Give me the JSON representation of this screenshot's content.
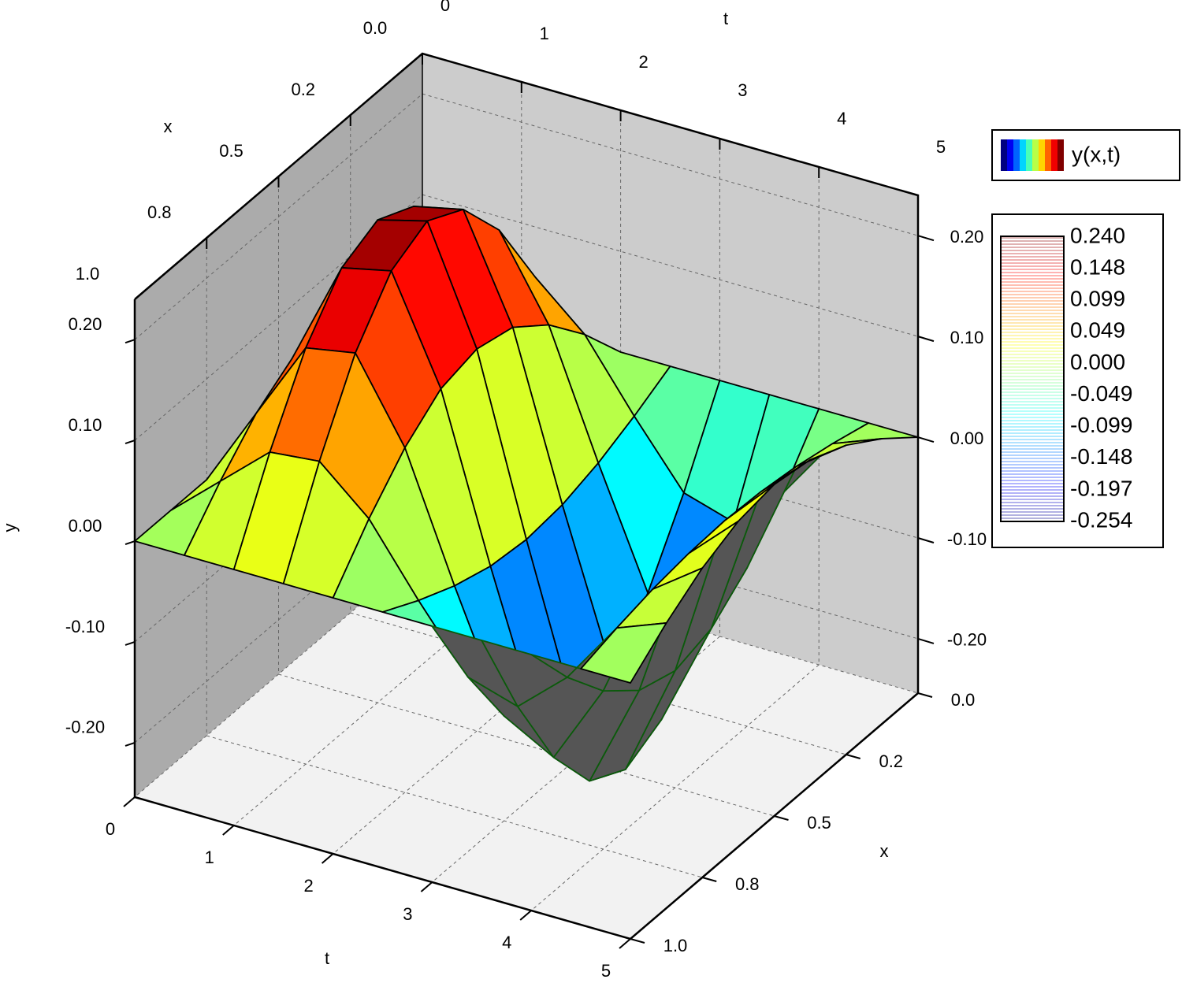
{
  "chart_data": {
    "type": "surface",
    "legend_label": "y(x,t)",
    "t_label": "t",
    "x_label": "x",
    "y_label": "y",
    "t": [
      0,
      0.5,
      1,
      1.5,
      2,
      2.5,
      3,
      3.5,
      4,
      4.5,
      5
    ],
    "x": [
      0,
      0.125,
      0.25,
      0.375,
      0.5,
      0.625,
      0.75,
      0.875,
      1
    ],
    "z": [
      [
        0,
        0,
        0,
        0,
        0,
        0,
        0,
        0,
        0
      ],
      [
        0,
        0.043,
        0.08,
        0.104,
        0.113,
        0.104,
        0.08,
        0.043,
        0
      ],
      [
        0,
        0.086,
        0.159,
        0.208,
        0.225,
        0.208,
        0.159,
        0.086,
        0
      ],
      [
        0,
        0.091,
        0.168,
        0.219,
        0.238,
        0.219,
        0.168,
        0.091,
        0
      ],
      [
        0,
        0.048,
        0.088,
        0.116,
        0.125,
        0.116,
        0.088,
        0.048,
        0
      ],
      [
        0,
        -0.019,
        -0.035,
        -0.046,
        -0.05,
        -0.046,
        -0.035,
        -0.019,
        0
      ],
      [
        0,
        -0.081,
        -0.15,
        -0.196,
        -0.213,
        -0.196,
        -0.15,
        -0.081,
        0
      ],
      [
        0,
        -0.096,
        -0.177,
        -0.231,
        -0.25,
        -0.231,
        -0.177,
        -0.096,
        0
      ],
      [
        0,
        -0.053,
        -0.097,
        -0.127,
        -0.138,
        -0.127,
        -0.097,
        -0.053,
        0
      ],
      [
        0,
        0.01,
        0.018,
        0.023,
        0.025,
        0.023,
        0.018,
        0.01,
        0
      ],
      [
        0,
        0.029,
        0.053,
        0.069,
        0.075,
        0.069,
        0.053,
        0.029,
        0
      ]
    ],
    "tlim": [
      0,
      5
    ],
    "xlim": [
      0,
      1
    ],
    "ylim": [
      -0.254,
      0.24
    ],
    "tticks": [
      0,
      1,
      2,
      3,
      4,
      5
    ],
    "xticks": [
      {
        "value": 0,
        "label": "0.0"
      },
      {
        "value": 0.25,
        "label": "0.2"
      },
      0.5,
      {
        "value": 0.75,
        "label": "0.8"
      },
      {
        "value": 1,
        "label": "1.0"
      }
    ],
    "yticks": [
      {
        "value": -0.2,
        "label": "-0.20"
      },
      {
        "value": -0.1,
        "label": "-0.10"
      },
      {
        "value": 0,
        "label": "0.00"
      },
      {
        "value": 0.1,
        "label": "0.10"
      },
      {
        "value": 0.2,
        "label": "0.20"
      }
    ],
    "colorbar_levels": [
      {
        "value": 0.24,
        "label": "0.240"
      },
      0.148,
      0.099,
      0.049,
      {
        "value": 0,
        "label": "0.000"
      },
      -0.049,
      -0.099,
      -0.148,
      -0.197,
      -0.254
    ],
    "colormap": "jet",
    "underside_color": "#555555",
    "edge_color": "#000000",
    "underside_edge_color": "#0b5a0b",
    "grid": true
  }
}
